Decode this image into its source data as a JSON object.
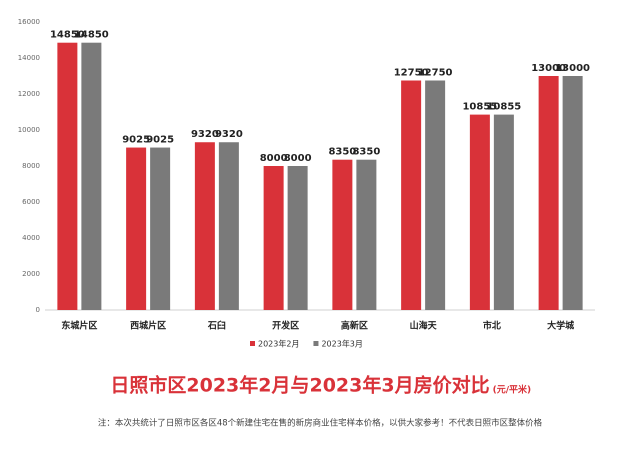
{
  "chart_data": {
    "type": "bar",
    "title": "日照市区2023年2月与2023年3月房价对比",
    "unit": "(元/平米)",
    "note": "注：本次共统计了日照市区各区48个新建住宅在售的新房商业住宅样本价格，以供大家参考！不代表日照市区整体价格",
    "categories": [
      "东城片区",
      "西城片区",
      "石臼",
      "开发区",
      "高新区",
      "山海天",
      "市北",
      "大学城"
    ],
    "series": [
      {
        "name": "2023年2月",
        "color": "#d93239",
        "values": [
          14850,
          9025,
          9320,
          8000,
          8350,
          12750,
          10855,
          13000
        ]
      },
      {
        "name": "2023年3月",
        "color": "#7a7a7a",
        "values": [
          14850,
          9025,
          9320,
          8000,
          8350,
          12750,
          10855,
          13000
        ]
      }
    ],
    "ylim": [
      0,
      16000
    ],
    "yticks": [
      0,
      2000,
      4000,
      6000,
      8000,
      10000,
      12000,
      14000,
      16000
    ],
    "grid": false,
    "legend": "bottom"
  }
}
